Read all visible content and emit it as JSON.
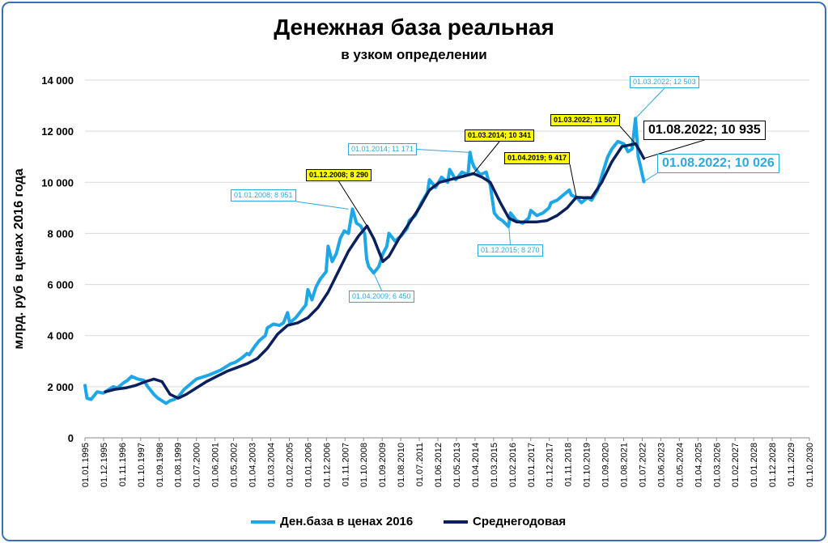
{
  "chart_data": {
    "type": "line",
    "title": "Денежная база реальная",
    "subtitle": "в узком определении",
    "ylabel": "млрд. руб  в ценах 2016 года",
    "xlabel": "",
    "ylim": [
      0,
      14000
    ],
    "y_ticks": [
      "0",
      "2 000",
      "4 000",
      "6 000",
      "8 000",
      "10 000",
      "12 000",
      "14 000"
    ],
    "x_range": [
      1995.0,
      2030.75
    ],
    "x_tick_labels": [
      "01.01.1995",
      "01.12.1995",
      "01.11.1996",
      "01.10.1997",
      "01.09.1998",
      "01.08.1999",
      "01.07.2000",
      "01.06.2001",
      "01.05.2002",
      "01.04.2003",
      "01.03.2004",
      "01.02.2005",
      "01.01.2006",
      "01.12.2006",
      "01.11.2007",
      "01.10.2008",
      "01.09.2009",
      "01.08.2010",
      "01.07.2011",
      "01.06.2012",
      "01.05.2013",
      "01.04.2014",
      "01.03.2015",
      "01.02.2016",
      "01.01.2017",
      "01.12.2017",
      "01.11.2018",
      "01.10.2019",
      "01.09.2020",
      "01.08.2021",
      "01.07.2022",
      "01.06.2023",
      "01.05.2024",
      "01.04.2025",
      "01.03.2026",
      "01.02.2027",
      "01.01.2028",
      "01.12.2028",
      "01.11.2029",
      "01.10.2030"
    ],
    "grid": true,
    "legend_placement": "bottom",
    "series": [
      {
        "name": "Ден.база в ценах 2016",
        "color": "#1ea7e8",
        "x": [
          1995.0,
          1995.1,
          1995.3,
          1995.6,
          1995.9,
          1996.2,
          1996.4,
          1996.6,
          1996.9,
          1997.1,
          1997.3,
          1997.6,
          1997.9,
          1998.1,
          1998.4,
          1998.6,
          1998.7,
          1998.9,
          1999.0,
          1999.2,
          1999.4,
          1999.6,
          1999.9,
          2000.2,
          2000.5,
          2000.9,
          2001.1,
          2001.4,
          2001.7,
          2002.0,
          2002.2,
          2002.4,
          2002.7,
          2003.0,
          2003.1,
          2003.4,
          2003.6,
          2003.9,
          2004.0,
          2004.3,
          2004.6,
          2004.8,
          2005.0,
          2005.1,
          2005.4,
          2005.6,
          2005.9,
          2006.0,
          2006.2,
          2006.4,
          2006.6,
          2006.9,
          2007.0,
          2007.2,
          2007.4,
          2007.6,
          2007.8,
          2008.0,
          2008.2,
          2008.4,
          2008.6,
          2008.8,
          2008.9,
          2009.0,
          2009.25,
          2009.5,
          2009.7,
          2009.9,
          2010.0,
          2010.3,
          2010.6,
          2010.9,
          2011.0,
          2011.3,
          2011.6,
          2011.9,
          2012.0,
          2012.3,
          2012.6,
          2012.9,
          2013.0,
          2013.3,
          2013.6,
          2013.9,
          2014.0,
          2014.1,
          2014.2,
          2014.5,
          2014.8,
          2014.9,
          2015.0,
          2015.2,
          2015.4,
          2015.6,
          2015.9,
          2016.0,
          2016.3,
          2016.6,
          2016.9,
          2017.0,
          2017.3,
          2017.6,
          2017.9,
          2018.0,
          2018.3,
          2018.6,
          2018.9,
          2019.0,
          2019.25,
          2019.5,
          2019.8,
          2020.0,
          2020.3,
          2020.6,
          2020.8,
          2021.0,
          2021.3,
          2021.6,
          2021.8,
          2022.0,
          2022.17,
          2022.3,
          2022.45,
          2022.58
        ],
        "values": [
          2050,
          1550,
          1500,
          1800,
          1750,
          1900,
          2000,
          1950,
          2150,
          2250,
          2400,
          2300,
          2250,
          2000,
          1700,
          1550,
          1500,
          1400,
          1350,
          1450,
          1500,
          1600,
          1900,
          2100,
          2300,
          2400,
          2450,
          2550,
          2650,
          2800,
          2900,
          2950,
          3100,
          3300,
          3250,
          3600,
          3800,
          4000,
          4300,
          4450,
          4400,
          4500,
          4900,
          4500,
          4700,
          4900,
          5200,
          5800,
          5400,
          5900,
          6200,
          6500,
          7500,
          6900,
          7200,
          7800,
          8100,
          8000,
          8951,
          8400,
          8300,
          8000,
          7000,
          6700,
          6450,
          6700,
          7200,
          7500,
          8000,
          7700,
          7900,
          8200,
          8500,
          8700,
          9200,
          9600,
          10100,
          9800,
          10200,
          10000,
          10500,
          10100,
          10400,
          10300,
          11171,
          10800,
          10600,
          10300,
          10400,
          10100,
          9900,
          8800,
          8600,
          8500,
          8270,
          8800,
          8500,
          8400,
          8600,
          8900,
          8700,
          8800,
          9000,
          9200,
          9300,
          9500,
          9700,
          9500,
          9417,
          9200,
          9400,
          9300,
          9700,
          10500,
          11000,
          11300,
          11600,
          11500,
          11200,
          11300,
          12503,
          11000,
          10500,
          10026
        ]
      },
      {
        "name": "Среднегодовая",
        "color": "#0a1f5c",
        "x": [
          1996.0,
          1996.5,
          1997.0,
          1997.5,
          1998.0,
          1998.4,
          1998.8,
          1999.2,
          1999.6,
          2000.0,
          2000.5,
          2001.0,
          2001.5,
          2002.0,
          2002.5,
          2003.0,
          2003.5,
          2004.0,
          2004.5,
          2005.0,
          2005.5,
          2006.0,
          2006.5,
          2007.0,
          2007.5,
          2008.0,
          2008.5,
          2008.92,
          2009.25,
          2009.7,
          2010.0,
          2010.5,
          2011.0,
          2011.5,
          2012.0,
          2012.5,
          2013.0,
          2013.5,
          2014.17,
          2014.6,
          2015.0,
          2015.5,
          2015.92,
          2016.3,
          2016.8,
          2017.3,
          2017.8,
          2018.3,
          2018.8,
          2019.25,
          2019.6,
          2020.0,
          2020.5,
          2021.0,
          2021.5,
          2022.17,
          2022.4,
          2022.58
        ],
        "values": [
          1800,
          1900,
          1950,
          2050,
          2200,
          2300,
          2200,
          1700,
          1550,
          1700,
          1950,
          2200,
          2400,
          2600,
          2750,
          2900,
          3100,
          3500,
          4050,
          4400,
          4500,
          4700,
          5100,
          5700,
          6500,
          7300,
          7900,
          8290,
          7800,
          6900,
          7100,
          7800,
          8400,
          9000,
          9700,
          10000,
          10100,
          10200,
          10341,
          10200,
          10000,
          9200,
          8600,
          8450,
          8450,
          8450,
          8500,
          8700,
          9000,
          9417,
          9400,
          9400,
          10000,
          10800,
          11400,
          11507,
          11200,
          10935
        ]
      }
    ],
    "annotations": [
      {
        "text": "01.01.2008; 8 951",
        "style": "blue",
        "x": 2008.0,
        "y": 8951
      },
      {
        "text": "01.12.2008;  8 290",
        "style": "yellow",
        "x": 2008.92,
        "y": 8290
      },
      {
        "text": "01.04.2009; 6 450",
        "style": "blue",
        "x": 2009.25,
        "y": 6450
      },
      {
        "text": "01.01.2014; 11 171",
        "style": "blue",
        "x": 2014.0,
        "y": 11171
      },
      {
        "text": "01.03.2014;  10 341",
        "style": "yellow",
        "x": 2014.17,
        "y": 10341
      },
      {
        "text": "01.12.2015; 8 270",
        "style": "blue",
        "x": 2015.92,
        "y": 8270
      },
      {
        "text": "01.04.2019;  9 417",
        "style": "yellow",
        "x": 2019.25,
        "y": 9417
      },
      {
        "text": "01.03.2022;  11 507",
        "style": "yellow",
        "x": 2022.17,
        "y": 11507
      },
      {
        "text": "01.03.2022; 12 503",
        "style": "blue",
        "x": 2022.17,
        "y": 12503
      },
      {
        "text": "01.08.2022;  10 935",
        "style": "big-dark",
        "x": 2022.58,
        "y": 10935
      },
      {
        "text": "01.08.2022; 10 026",
        "style": "big-blue",
        "x": 2022.58,
        "y": 10026
      }
    ]
  }
}
